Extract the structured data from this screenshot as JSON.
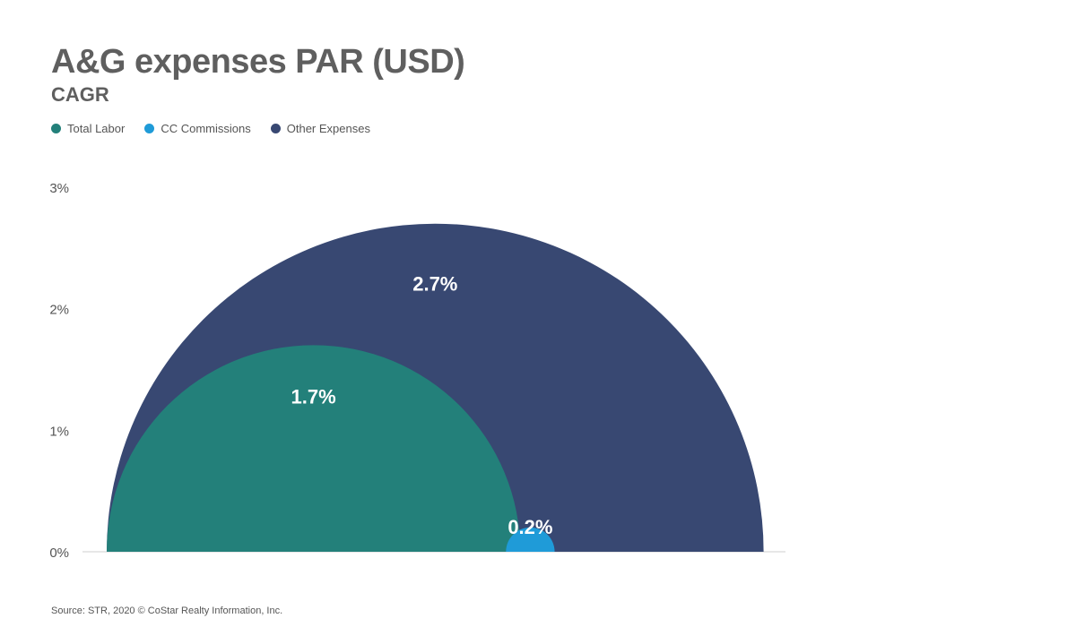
{
  "title": "A&G expenses PAR (USD)",
  "subtitle": "CAGR",
  "source": "Source: STR, 2020 © CoStar Realty Information, Inc.",
  "chart_data": {
    "type": "area",
    "title": "A&G expenses PAR (USD)",
    "subtitle": "CAGR",
    "ylim": [
      0,
      3
    ],
    "yticks": [
      0,
      1,
      2,
      3
    ],
    "ytick_labels": [
      "0%",
      "1%",
      "2%",
      "3%"
    ],
    "grid": false,
    "legend_position": "top-left",
    "series": [
      {
        "name": "Total Labor",
        "value": 1.7,
        "label": "1.7%",
        "color": "#23807a"
      },
      {
        "name": "CC Commissions",
        "value": 0.2,
        "label": "0.2%",
        "color": "#1f9bd8"
      },
      {
        "name": "Other Expenses",
        "value": 2.7,
        "label": "2.7%",
        "color": "#384872"
      }
    ]
  }
}
